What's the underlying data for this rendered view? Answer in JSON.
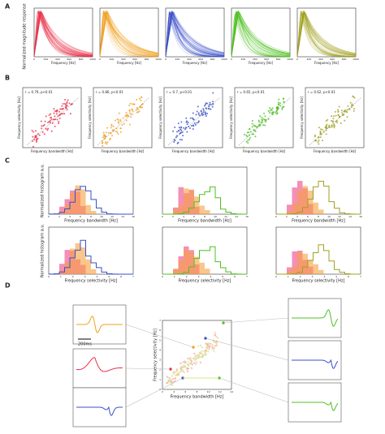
{
  "panels": {
    "a": {
      "label": "A",
      "ylabel": "Normalized magnitude response",
      "xlabel": "Frequency [Hz]",
      "xticks": [
        "0",
        "200",
        "400",
        "600",
        "800",
        "1000"
      ]
    },
    "b": {
      "label": "B",
      "xlabel": "Frequency bandwidth [Hz]",
      "ylabel": "Frequency selectivity [Hz]",
      "stats": [
        "r = 0.79, p<0.01",
        "r = 0.86, p<0.01",
        "r = 0.7, p<0.01",
        "r = 0.65, p<0.01",
        "r = 0.62, p<0.01"
      ]
    },
    "c": {
      "label": "C",
      "ylabel": "Normalized histogram a.u.",
      "xlabel_top": "Frequency bandwidth [Hz]",
      "xlabel_bottom": "Frequency selectivity [Hz]",
      "xticks_top": [
        "0",
        "2",
        "4",
        "6",
        "8",
        "10",
        "12",
        "14",
        "16"
      ],
      "xticks_bottom": [
        "0",
        "1",
        "2",
        "3",
        "4",
        "5",
        "6",
        "7"
      ]
    },
    "d": {
      "label": "D",
      "scale_bar": "200ms",
      "xlabel": "Frequency bandwidth [Hz]",
      "ylabel": "Frequency selectivity [Hz]",
      "xticks": [
        "2",
        "4",
        "6",
        "8",
        "10",
        "12",
        "14"
      ],
      "yticks": [
        "0",
        "1",
        "2",
        "3",
        "4",
        "5",
        "6",
        "7"
      ]
    }
  }
}
